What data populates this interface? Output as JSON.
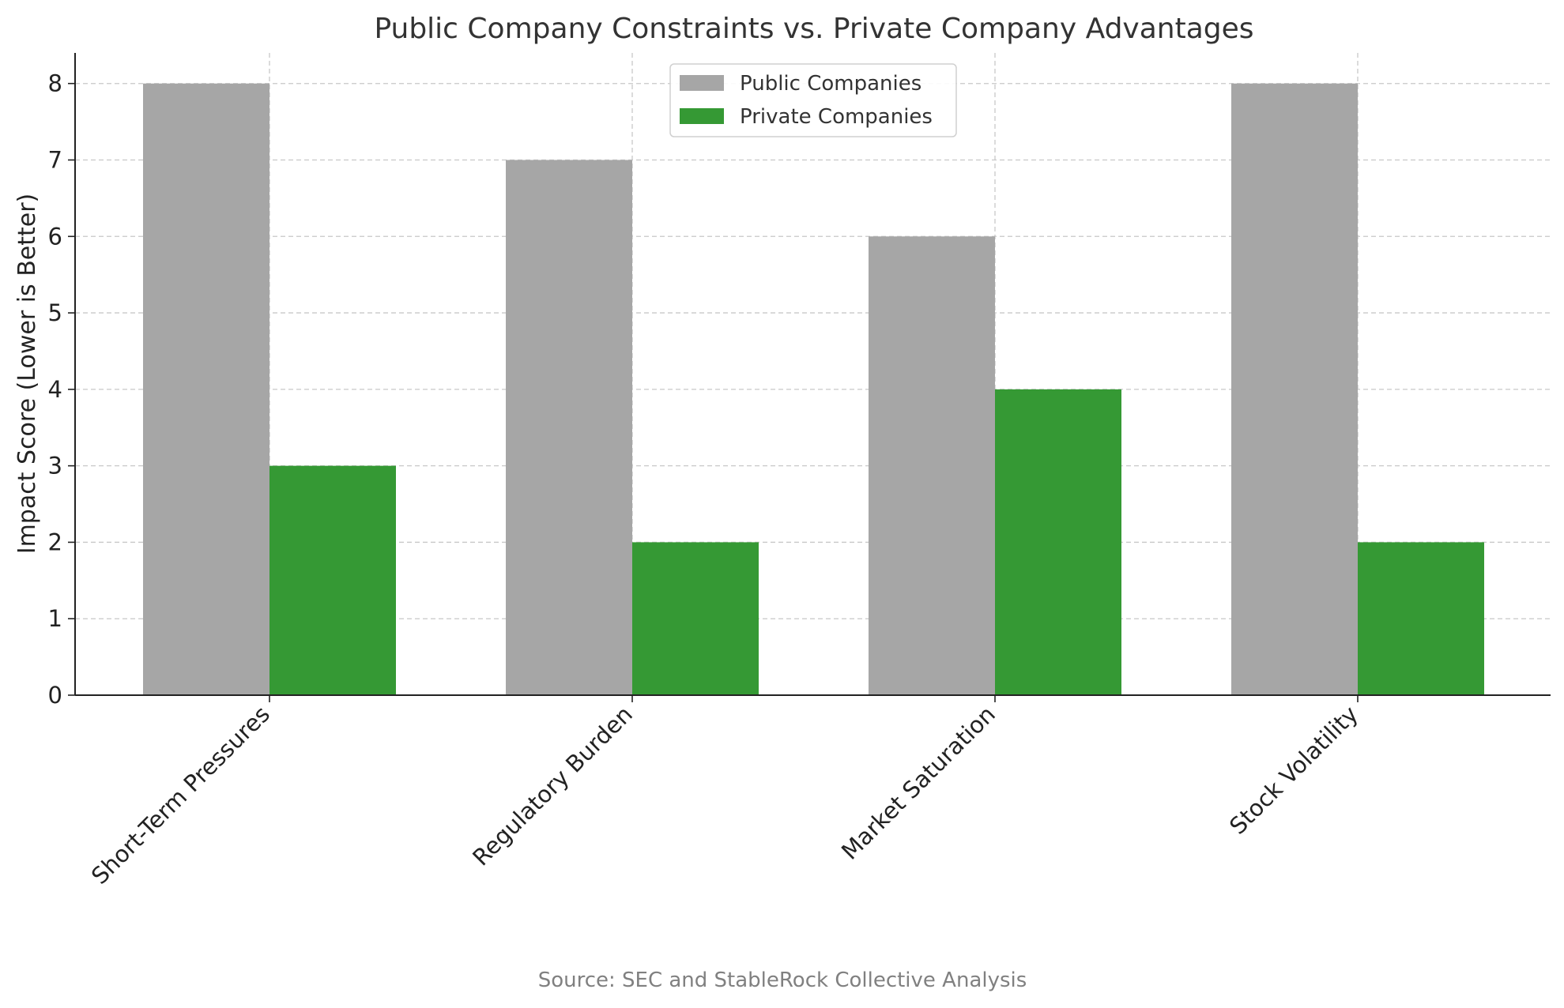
{
  "chart_data": {
    "type": "bar",
    "title": "Public Company Constraints vs. Private Company Advantages",
    "xlabel": "",
    "ylabel": "Impact Score (Lower is Better)",
    "categories": [
      "Short-Term Pressures",
      "Regulatory Burden",
      "Market Saturation",
      "Stock Volatility"
    ],
    "series": [
      {
        "name": "Public Companies",
        "values": [
          8,
          7,
          6,
          8
        ],
        "color": "#a6a6a6"
      },
      {
        "name": "Private Companies",
        "values": [
          3,
          2,
          4,
          2
        ],
        "color": "#359934"
      }
    ],
    "ylim": [
      0,
      8.4
    ],
    "yticks": [
      "0",
      "1",
      "2",
      "3",
      "4",
      "5",
      "6",
      "7",
      "8"
    ],
    "grid": true,
    "legend": "top-center",
    "source": "Source: SEC and StableRock Collective Analysis"
  }
}
